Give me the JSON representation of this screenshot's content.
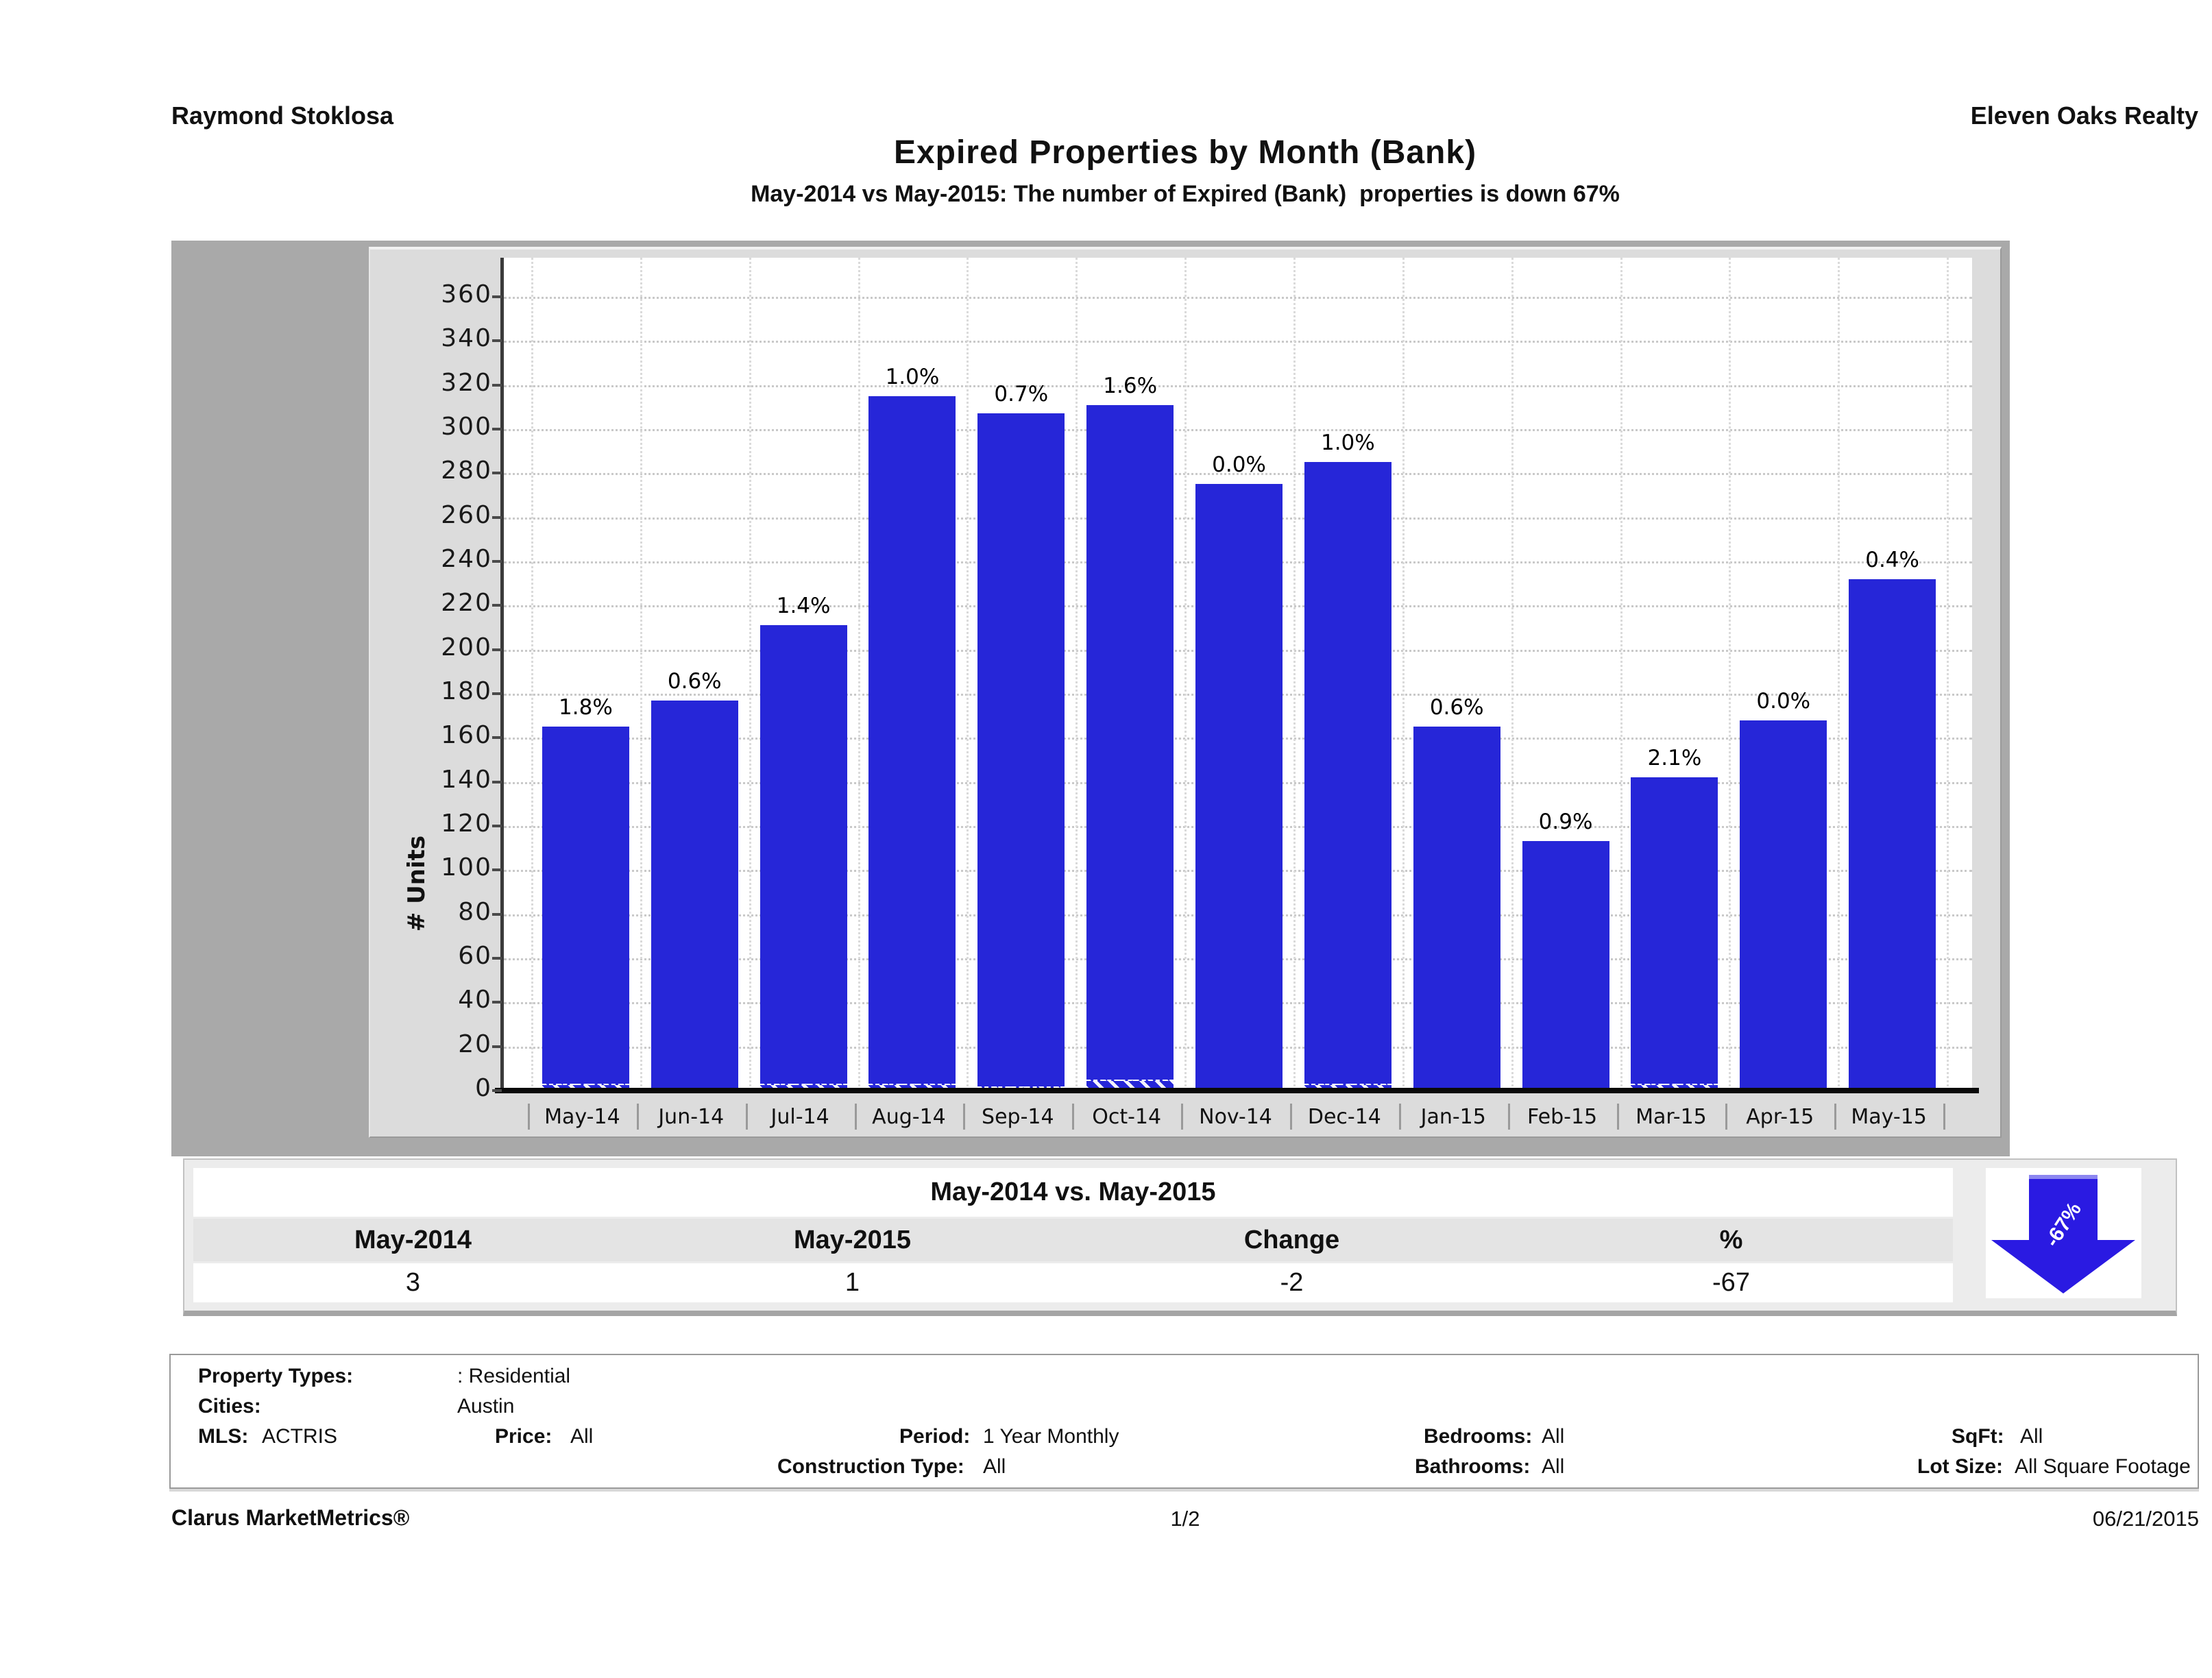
{
  "header": {
    "agent": "Raymond Stoklosa",
    "company": "Eleven Oaks Realty"
  },
  "titles": {
    "title": "Expired Properties by Month (Bank)",
    "subtitle": "May-2014 vs May-2015: The number of Expired (Bank)  properties is down 67%"
  },
  "chart_data": {
    "type": "bar",
    "title": "Expired Properties by Month (Bank)",
    "xlabel": "",
    "ylabel": "# Units",
    "ylim": [
      0,
      360
    ],
    "ytick_step": 20,
    "grid": "dotted",
    "legend_position": "none",
    "bar_color": "#2626d8",
    "categories": [
      "May-14",
      "Jun-14",
      "Jul-14",
      "Aug-14",
      "Sep-14",
      "Oct-14",
      "Nov-14",
      "Dec-14",
      "Jan-15",
      "Feb-15",
      "Mar-15",
      "Apr-15",
      "May-15"
    ],
    "series": [
      {
        "name": "# Units (all expired)",
        "values": [
          165,
          177,
          211,
          315,
          307,
          311,
          275,
          285,
          165,
          113,
          142,
          168,
          232
        ]
      },
      {
        "name": "Expired (Bank)",
        "values": [
          3,
          1,
          3,
          3,
          2,
          5,
          0,
          3,
          1,
          1,
          3,
          0,
          1
        ]
      }
    ],
    "bar_labels": [
      "1.8%",
      "0.6%",
      "1.4%",
      "1.0%",
      "0.7%",
      "1.6%",
      "0.0%",
      "1.0%",
      "0.6%",
      "0.9%",
      "2.1%",
      "0.0%",
      "0.4%"
    ]
  },
  "comparison": {
    "title": "May-2014 vs. May-2015",
    "columns": [
      "May-2014",
      "May-2015",
      "Change",
      "%"
    ],
    "values": [
      "3",
      "1",
      "-2",
      "-67"
    ],
    "arrow_label": "-67%",
    "arrow_color": "#2a1ae2"
  },
  "filters": {
    "property_types_label": "Property Types:",
    "property_types_value": ": Residential",
    "cities_label": "Cities:",
    "cities_value": "Austin",
    "mls_label": "MLS:",
    "mls_value": "ACTRIS",
    "price_label": "Price:",
    "price_value": "All",
    "period_label": "Period:",
    "period_value": "1 Year Monthly",
    "bedrooms_label": "Bedrooms:",
    "bedrooms_value": "All",
    "sqft_label": "SqFt:",
    "sqft_value": "All",
    "construction_label": "Construction Type:",
    "construction_value": "All",
    "bathrooms_label": "Bathrooms:",
    "bathrooms_value": "All",
    "lotsize_label": "Lot Size:",
    "lotsize_value": "All Square Footage"
  },
  "footer": {
    "left": "Clarus MarketMetrics®",
    "center": "1/2",
    "right": "06/21/2015"
  }
}
